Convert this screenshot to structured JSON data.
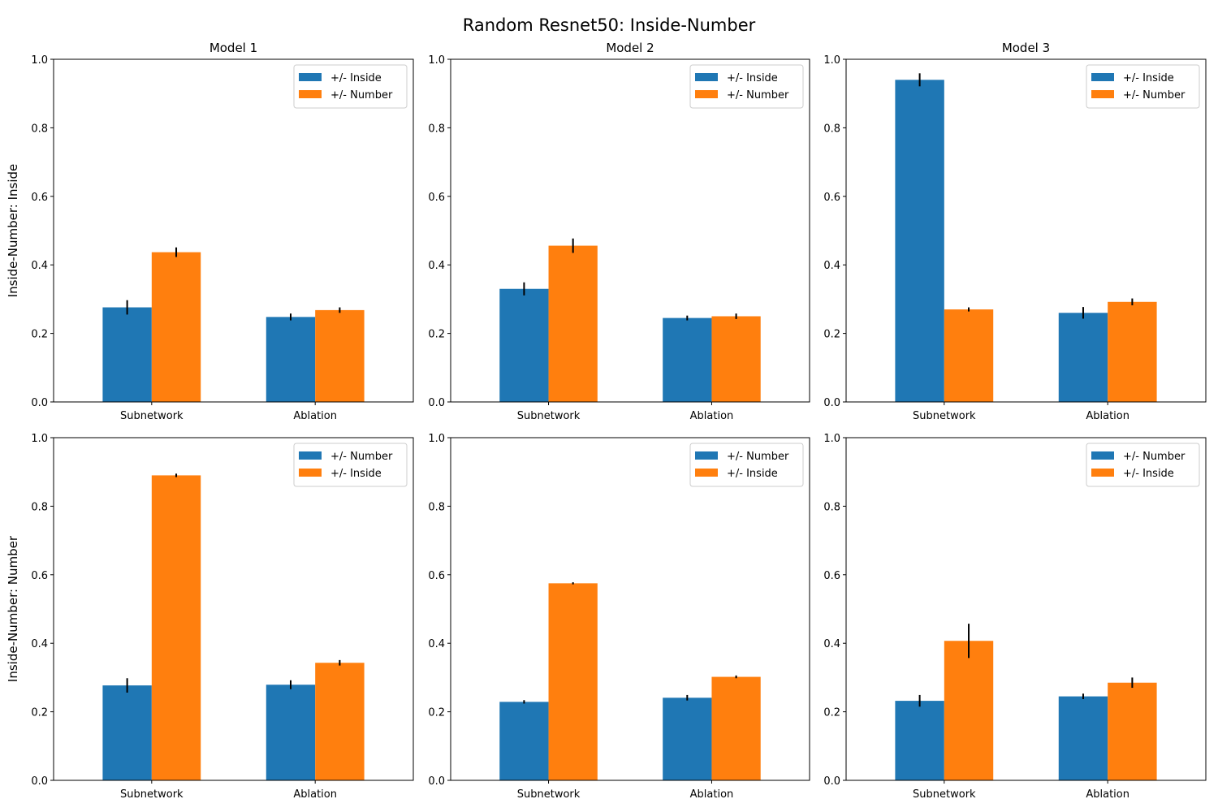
{
  "figure": {
    "title": "Random Resnet50: Inside-Number"
  },
  "chart_data": [
    {
      "type": "bar",
      "title": "Model 1",
      "ylabel": "Inside-Number: Inside",
      "ylim": [
        0,
        1
      ],
      "yticks": [
        "0.0",
        "0.2",
        "0.4",
        "0.6",
        "0.8",
        "1.0"
      ],
      "categories": [
        "Subnetwork",
        "Ablation"
      ],
      "legend_position": "top-right",
      "series": [
        {
          "name": "+/- Inside",
          "color": "#1f77b4",
          "values": [
            0.276,
            0.248
          ],
          "errors": [
            0.021,
            0.01
          ]
        },
        {
          "name": "+/- Number",
          "color": "#ff7f0e",
          "values": [
            0.437,
            0.268
          ],
          "errors": [
            0.014,
            0.008
          ]
        }
      ]
    },
    {
      "type": "bar",
      "title": "Model 2",
      "ylabel": "",
      "ylim": [
        0,
        1
      ],
      "yticks": [
        "0.0",
        "0.2",
        "0.4",
        "0.6",
        "0.8",
        "1.0"
      ],
      "categories": [
        "Subnetwork",
        "Ablation"
      ],
      "legend_position": "top-right",
      "series": [
        {
          "name": "+/- Inside",
          "color": "#1f77b4",
          "values": [
            0.33,
            0.245
          ],
          "errors": [
            0.019,
            0.007
          ]
        },
        {
          "name": "+/- Number",
          "color": "#ff7f0e",
          "values": [
            0.456,
            0.25
          ],
          "errors": [
            0.021,
            0.008
          ]
        }
      ]
    },
    {
      "type": "bar",
      "title": "Model 3",
      "ylabel": "",
      "ylim": [
        0,
        1
      ],
      "yticks": [
        "0.0",
        "0.2",
        "0.4",
        "0.6",
        "0.8",
        "1.0"
      ],
      "categories": [
        "Subnetwork",
        "Ablation"
      ],
      "legend_position": "top-right",
      "series": [
        {
          "name": "+/- Inside",
          "color": "#1f77b4",
          "values": [
            0.94,
            0.26
          ],
          "errors": [
            0.019,
            0.017
          ]
        },
        {
          "name": "+/- Number",
          "color": "#ff7f0e",
          "values": [
            0.27,
            0.292
          ],
          "errors": [
            0.006,
            0.01
          ]
        }
      ]
    },
    {
      "type": "bar",
      "title": "",
      "ylabel": "Inside-Number: Number",
      "ylim": [
        0,
        1
      ],
      "yticks": [
        "0.0",
        "0.2",
        "0.4",
        "0.6",
        "0.8",
        "1.0"
      ],
      "categories": [
        "Subnetwork",
        "Ablation"
      ],
      "legend_position": "top-right",
      "series": [
        {
          "name": "+/- Number",
          "color": "#1f77b4",
          "values": [
            0.277,
            0.279
          ],
          "errors": [
            0.021,
            0.013
          ]
        },
        {
          "name": "+/- Inside",
          "color": "#ff7f0e",
          "values": [
            0.89,
            0.343
          ],
          "errors": [
            0.005,
            0.008
          ]
        }
      ]
    },
    {
      "type": "bar",
      "title": "",
      "ylabel": "",
      "ylim": [
        0,
        1
      ],
      "yticks": [
        "0.0",
        "0.2",
        "0.4",
        "0.6",
        "0.8",
        "1.0"
      ],
      "categories": [
        "Subnetwork",
        "Ablation"
      ],
      "legend_position": "top-right",
      "series": [
        {
          "name": "+/- Number",
          "color": "#1f77b4",
          "values": [
            0.229,
            0.241
          ],
          "errors": [
            0.005,
            0.008
          ]
        },
        {
          "name": "+/- Inside",
          "color": "#ff7f0e",
          "values": [
            0.575,
            0.302
          ],
          "errors": [
            0.003,
            0.004
          ]
        }
      ]
    },
    {
      "type": "bar",
      "title": "",
      "ylabel": "",
      "ylim": [
        0,
        1
      ],
      "yticks": [
        "0.0",
        "0.2",
        "0.4",
        "0.6",
        "0.8",
        "1.0"
      ],
      "categories": [
        "Subnetwork",
        "Ablation"
      ],
      "legend_position": "top-right",
      "series": [
        {
          "name": "+/- Number",
          "color": "#1f77b4",
          "values": [
            0.232,
            0.245
          ],
          "errors": [
            0.017,
            0.008
          ]
        },
        {
          "name": "+/- Inside",
          "color": "#ff7f0e",
          "values": [
            0.407,
            0.285
          ],
          "errors": [
            0.05,
            0.015
          ]
        }
      ]
    }
  ]
}
